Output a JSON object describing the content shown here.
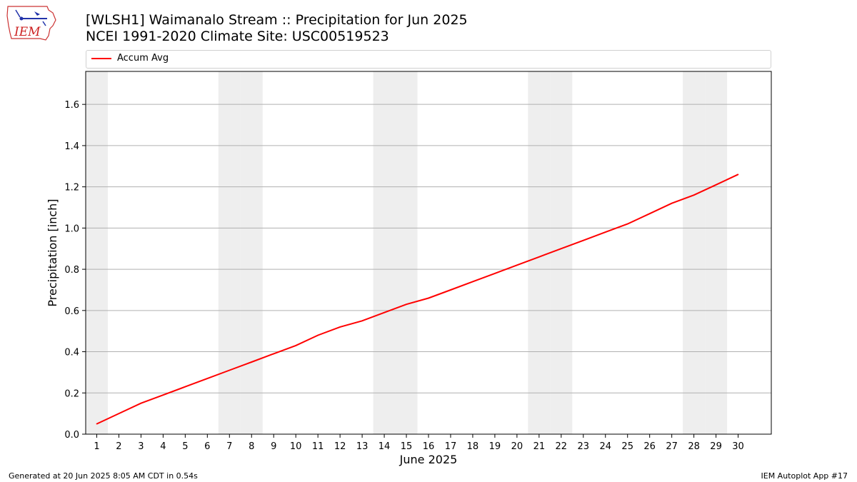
{
  "header": {
    "title_line1": "[WLSH1] Waimanalo Stream :: Precipitation for Jun 2025",
    "title_line2": "NCEI 1991-2020 Climate Site: USC00519523"
  },
  "logo": {
    "text": "IEM"
  },
  "footer": {
    "left": "Generated at 20 Jun 2025 8:05 AM CDT in 0.54s",
    "right": "IEM Autoplot App #17"
  },
  "colors": {
    "line": "#ff0000",
    "weekend_band": "#eeeeee",
    "grid": "#b0b0b0"
  },
  "chart_data": {
    "type": "line",
    "title": "[WLSH1] Waimanalo Stream :: Precipitation for Jun 2025",
    "subtitle": "NCEI 1991-2020 Climate Site: USC00519523",
    "xlabel": "June 2025",
    "ylabel": "Precipitation [inch]",
    "xlim": [
      0.5,
      31.5
    ],
    "ylim": [
      0,
      1.76
    ],
    "x_ticks": [
      1,
      2,
      3,
      4,
      5,
      6,
      7,
      8,
      9,
      10,
      11,
      12,
      13,
      14,
      15,
      16,
      17,
      18,
      19,
      20,
      21,
      22,
      23,
      24,
      25,
      26,
      27,
      28,
      29,
      30
    ],
    "y_ticks": [
      0.0,
      0.2,
      0.4,
      0.6,
      0.8,
      1.0,
      1.2,
      1.4,
      1.6
    ],
    "y_tick_labels": [
      "0.0",
      "0.2",
      "0.4",
      "0.6",
      "0.8",
      "1.0",
      "1.2",
      "1.4",
      "1.6"
    ],
    "grid": "y",
    "legend_position": "top",
    "shaded_weekend_days": [
      1,
      7,
      8,
      14,
      15,
      21,
      22,
      28,
      29
    ],
    "series": [
      {
        "name": "Accum Avg",
        "color": "#ff0000",
        "x": [
          1,
          2,
          3,
          4,
          5,
          6,
          7,
          8,
          9,
          10,
          11,
          12,
          13,
          14,
          15,
          16,
          17,
          18,
          19,
          20,
          21,
          22,
          23,
          24,
          25,
          26,
          27,
          28,
          29,
          30
        ],
        "values": [
          0.05,
          0.1,
          0.15,
          0.19,
          0.23,
          0.27,
          0.31,
          0.35,
          0.39,
          0.43,
          0.48,
          0.52,
          0.55,
          0.59,
          0.63,
          0.66,
          0.7,
          0.74,
          0.78,
          0.82,
          0.86,
          0.9,
          0.94,
          0.98,
          1.02,
          1.07,
          1.12,
          1.16,
          1.21,
          1.26
        ]
      }
    ]
  }
}
